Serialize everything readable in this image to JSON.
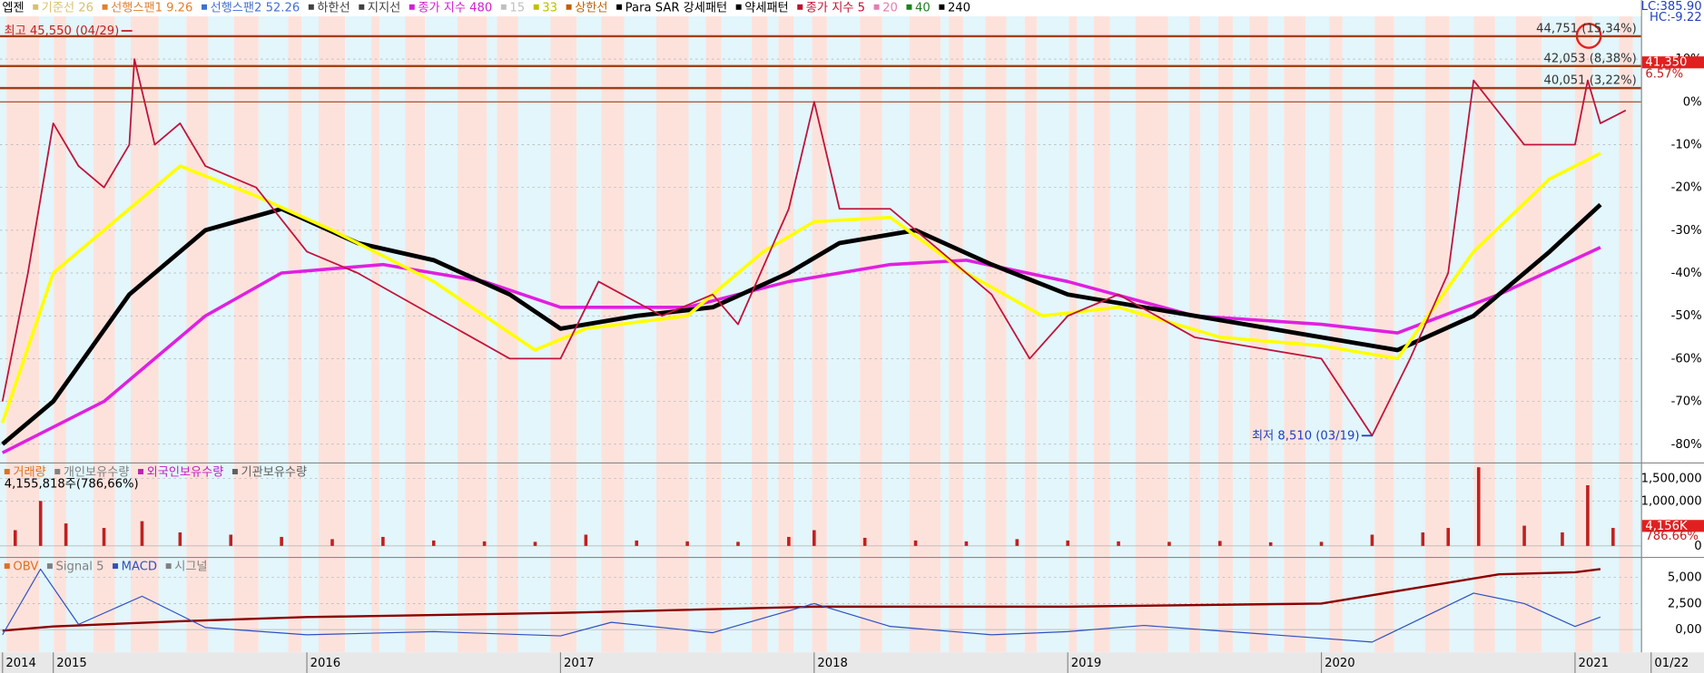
{
  "header": {
    "legend": [
      {
        "text": "엡젠",
        "color": "#000000"
      },
      {
        "text": "기준선 26",
        "color": "#d8c070"
      },
      {
        "text": "선행스팬1 9.26",
        "color": "#e08030"
      },
      {
        "text": "선행스팬2 52.26",
        "color": "#4070d0"
      },
      {
        "text": "하한선",
        "color": "#404040"
      },
      {
        "text": "지지선",
        "color": "#404040"
      },
      {
        "text": "종가 지수 480",
        "color": "#d020d0"
      },
      {
        "text": "15",
        "color": "#c0c0c0"
      },
      {
        "text": "33",
        "color": "#c0c000"
      },
      {
        "text": "상한선",
        "color": "#c06000"
      },
      {
        "text": "Para SAR 강세패턴",
        "color": "#000000"
      },
      {
        "text": "약세패턴",
        "color": "#000000"
      },
      {
        "text": "종가 지수 5",
        "color": "#c01030"
      },
      {
        "text": "20",
        "color": "#e080b0"
      },
      {
        "text": "40",
        "color": "#208020"
      },
      {
        "text": "240",
        "color": "#000000"
      }
    ],
    "lc": "LC:385.90",
    "hc": "HC:-9.22"
  },
  "chart_data": [
    {
      "type": "line",
      "xlim": [
        2014.79,
        2021.26
      ],
      "ylim": [
        -84,
        20
      ],
      "grid": true,
      "yticks": [
        {
          "value": 10,
          "label": "10%"
        },
        {
          "value": 0,
          "label": "0%"
        },
        {
          "value": -10,
          "label": "-10%"
        },
        {
          "value": -20,
          "label": "-20%"
        },
        {
          "value": -30,
          "label": "-30%"
        },
        {
          "value": -40,
          "label": "-40%"
        },
        {
          "value": -50,
          "label": "-50%"
        },
        {
          "value": -60,
          "label": "-60%"
        },
        {
          "value": -70,
          "label": "-70%"
        },
        {
          "value": -80,
          "label": "-80%"
        }
      ],
      "levels": [
        {
          "value": 15.34,
          "label": "44,751 (15,34%)"
        },
        {
          "value": 8.38,
          "label": "42,053 (8,38%)"
        },
        {
          "value": 3.22,
          "label": "40,051 (3,22%)"
        }
      ],
      "last": {
        "value": 6.57,
        "label": "6.57%",
        "price_label": "41,350"
      },
      "annotations": [
        {
          "x": 2015.32,
          "y": 16.6,
          "text": "최고 45,550 (04/29)"
        },
        {
          "x": 2020.21,
          "y": -78,
          "text": "최저 8,510 (03/19)"
        }
      ],
      "series": [
        {
          "color": "#e020e0",
          "width": 3,
          "x": [
            2014.8,
            2015.2,
            2015.6,
            2015.9,
            2016.3,
            2016.7,
            2017.0,
            2017.5,
            2017.9,
            2018.3,
            2018.6,
            2019.0,
            2019.5,
            2020.0,
            2020.3,
            2020.7,
            2021.1
          ],
          "values": [
            -82,
            -70,
            -50,
            -40,
            -38,
            -42,
            -48,
            -48,
            -42,
            -38,
            -37,
            -42,
            -50,
            -52,
            -54,
            -45,
            -34
          ]
        },
        {
          "color": "#000000",
          "width": 4,
          "x": [
            2014.8,
            2015.0,
            2015.3,
            2015.6,
            2015.9,
            2016.2,
            2016.5,
            2016.8,
            2017.0,
            2017.3,
            2017.6,
            2017.9,
            2018.1,
            2018.4,
            2018.7,
            2019.0,
            2019.3,
            2019.7,
            2020.0,
            2020.3,
            2020.6,
            2020.9,
            2021.1
          ],
          "values": [
            -80,
            -70,
            -45,
            -30,
            -25,
            -33,
            -37,
            -45,
            -53,
            -50,
            -48,
            -40,
            -33,
            -30,
            -38,
            -45,
            -48,
            -52,
            -55,
            -58,
            -50,
            -35,
            -24
          ]
        },
        {
          "color": "#ffff00",
          "width": 3,
          "x": [
            2014.8,
            2015.0,
            2015.3,
            2015.5,
            2015.8,
            2016.1,
            2016.5,
            2016.9,
            2017.1,
            2017.5,
            2017.8,
            2018.0,
            2018.3,
            2018.6,
            2018.9,
            2019.2,
            2019.6,
            2020.0,
            2020.3,
            2020.6,
            2020.9,
            2021.1
          ],
          "values": [
            -75,
            -40,
            -25,
            -15,
            -22,
            -30,
            -42,
            -58,
            -53,
            -50,
            -35,
            -28,
            -27,
            -40,
            -50,
            -48,
            -55,
            -57,
            -60,
            -35,
            -18,
            -12
          ]
        },
        {
          "color": "#c0143c",
          "width": 1.5,
          "x": [
            2014.8,
            2014.9,
            2015.0,
            2015.1,
            2015.2,
            2015.3,
            2015.32,
            2015.4,
            2015.5,
            2015.6,
            2015.8,
            2016.0,
            2016.2,
            2016.5,
            2016.8,
            2017.0,
            2017.15,
            2017.4,
            2017.6,
            2017.7,
            2017.9,
            2018.0,
            2018.1,
            2018.3,
            2018.5,
            2018.7,
            2018.85,
            2019.0,
            2019.2,
            2019.5,
            2019.7,
            2020.0,
            2020.2,
            2020.35,
            2020.5,
            2020.6,
            2020.8,
            2021.0,
            2021.05,
            2021.1,
            2021.2
          ],
          "values": [
            -70,
            -40,
            -5,
            -15,
            -20,
            -10,
            10,
            -10,
            -5,
            -15,
            -20,
            -35,
            -40,
            -50,
            -60,
            -60,
            -42,
            -50,
            -45,
            -52,
            -25,
            0,
            -25,
            -25,
            -35,
            -45,
            -60,
            -50,
            -45,
            -55,
            -57,
            -60,
            -78,
            -60,
            -40,
            5,
            -10,
            -10,
            5,
            -5,
            -2
          ]
        }
      ]
    },
    {
      "type": "bar",
      "xlim": [
        2014.79,
        2021.26
      ],
      "ylim": [
        -220000,
        1810000
      ],
      "color": "#c02020",
      "legend": [
        {
          "text": "거래량",
          "color": "#e07020"
        },
        {
          "text": "개인보유수량",
          "color": "#808080"
        },
        {
          "text": "외국인보유수량",
          "color": "#c020c0"
        },
        {
          "text": "기관보유수량",
          "color": "#606060"
        }
      ],
      "subtitle": "4,155,818주(786,66%)",
      "last_label": "4,156K",
      "last_pct": "786.66%",
      "yticks": [
        0,
        {
          "value": 1000000,
          "label": "1,000,000"
        },
        {
          "value": 1500000,
          "label": "1,500,000"
        }
      ],
      "x": [
        2014.85,
        2014.95,
        2015.05,
        2015.2,
        2015.35,
        2015.5,
        2015.7,
        2015.9,
        2016.1,
        2016.3,
        2016.5,
        2016.7,
        2016.9,
        2017.1,
        2017.3,
        2017.5,
        2017.7,
        2017.9,
        2018.0,
        2018.2,
        2018.4,
        2018.6,
        2018.8,
        2019.0,
        2019.2,
        2019.4,
        2019.6,
        2019.8,
        2020.0,
        2020.2,
        2020.4,
        2020.5,
        2020.62,
        2020.8,
        2020.95,
        2021.05,
        2021.15
      ],
      "values": [
        350000,
        1000000,
        500000,
        400000,
        550000,
        300000,
        250000,
        200000,
        150000,
        200000,
        120000,
        100000,
        90000,
        250000,
        120000,
        100000,
        90000,
        200000,
        350000,
        180000,
        120000,
        100000,
        150000,
        120000,
        100000,
        90000,
        110000,
        80000,
        90000,
        250000,
        300000,
        400000,
        1750000,
        450000,
        300000,
        1350000,
        400000
      ]
    },
    {
      "type": "line",
      "xlim": [
        2014.79,
        2021.26
      ],
      "ylim": [
        -2083,
        6770
      ],
      "legend": [
        {
          "text": "OBV",
          "color": "#e07020"
        },
        {
          "text": "Signal 5",
          "color": "#808080"
        },
        {
          "text": "MACD",
          "color": "#3050c0"
        },
        {
          "text": "시그널",
          "color": "#808080"
        }
      ],
      "yticks": [
        {
          "value": 0,
          "label": "0,00"
        },
        {
          "value": 2500,
          "label": "2,500"
        },
        {
          "value": 5000,
          "label": "5,000"
        }
      ],
      "xticks": [
        {
          "value": 2014.8,
          "label": "2014"
        },
        2015,
        2016,
        2017,
        2018,
        2019,
        2020,
        2021,
        {
          "value": 2021.3,
          "label": "01/22"
        }
      ],
      "series": [
        {
          "color": "#8b0000",
          "width": 2,
          "x": [
            2014.8,
            2015.0,
            2015.5,
            2016.0,
            2017.0,
            2018.0,
            2019.0,
            2020.0,
            2020.5,
            2020.7,
            2021.0,
            2021.1
          ],
          "values": [
            -100,
            300,
            800,
            1200,
            1600,
            2200,
            2200,
            2500,
            4500,
            5300,
            5500,
            5800
          ]
        },
        {
          "color": "#3050c0",
          "width": 1,
          "x": [
            2014.8,
            2014.95,
            2015.1,
            2015.35,
            2015.6,
            2016.0,
            2016.5,
            2017.0,
            2017.2,
            2017.6,
            2018.0,
            2018.3,
            2018.7,
            2019.0,
            2019.3,
            2019.7,
            2020.2,
            2020.6,
            2020.8,
            2021.0,
            2021.1
          ],
          "values": [
            -500,
            5800,
            500,
            3200,
            200,
            -500,
            -200,
            -600,
            700,
            -300,
            2500,
            300,
            -500,
            -200,
            400,
            -300,
            -1200,
            3500,
            2500,
            300,
            1200
          ]
        }
      ]
    }
  ]
}
